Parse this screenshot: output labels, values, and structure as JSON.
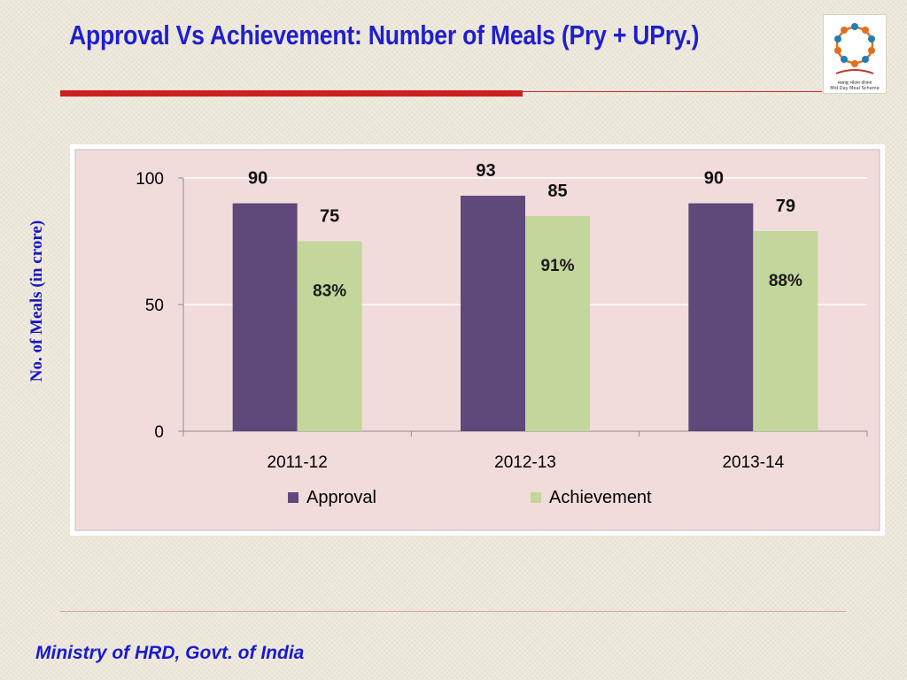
{
  "slide": {
    "title": "Approval Vs Achievement:  Number of Meals (Pry + UPry.)",
    "y_axis_title": "No. of Meals (in crore)",
    "footer": "Ministry of HRD, Govt. of India",
    "logo_caption_line1": "मध्याह्न भोजन योजना",
    "logo_caption_line2": "Mid Day Meal Scheme"
  },
  "colors": {
    "title": "#1f1fcc",
    "accent_rule": "#cc1f1f",
    "chart_background": "#f2dcdb",
    "approval": "#5f497a",
    "achievement": "#c3d69b"
  },
  "chart_data": {
    "type": "bar",
    "categories": [
      "2011-12",
      "2012-13",
      "2013-14"
    ],
    "series": [
      {
        "name": "Approval",
        "values": [
          90,
          93,
          90
        ],
        "labels": [
          "90",
          "93",
          "90"
        ]
      },
      {
        "name": "Achievement",
        "values": [
          75,
          85,
          79
        ],
        "labels": [
          "75",
          "85",
          "79"
        ]
      }
    ],
    "percent_labels": [
      "83%",
      "91%",
      "88%"
    ],
    "yticks": [
      "0",
      "50",
      "100"
    ],
    "ylim": [
      0,
      100
    ],
    "grid": true,
    "legend": "bottom"
  }
}
